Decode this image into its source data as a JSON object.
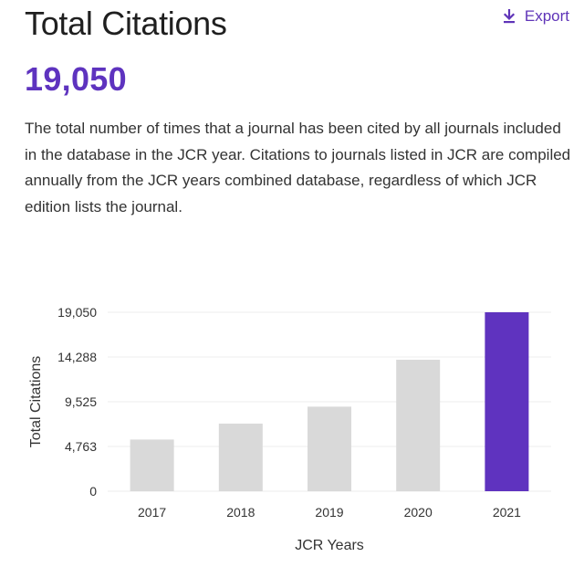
{
  "header": {
    "title": "Total Citations",
    "export_label": "Export",
    "export_icon": "download-icon"
  },
  "metric": {
    "value": "19,050"
  },
  "description": "The total number of times that a journal has been cited by all journals included in the database in the JCR year. Citations to journals listed in JCR are compiled annually from the JCR years combined database, regardless of which JCR edition lists the journal.",
  "colors": {
    "accent": "#5e33bf",
    "bar_default": "#d9d9d9",
    "bar_highlight": "#5f33bf",
    "gridline": "#ececec"
  },
  "chart_data": {
    "type": "bar",
    "title": "",
    "xlabel": "JCR Years",
    "ylabel": "Total Citations",
    "categories": [
      "2017",
      "2018",
      "2019",
      "2020",
      "2021"
    ],
    "values": [
      5500,
      7200,
      9000,
      14000,
      19050
    ],
    "highlight_index": 4,
    "yticks": [
      0,
      4763,
      9525,
      14288,
      19050
    ],
    "ytick_labels": [
      "0",
      "4,763",
      "9,525",
      "14,288",
      "19,050"
    ],
    "ylim": [
      0,
      19050
    ],
    "grid": true
  }
}
